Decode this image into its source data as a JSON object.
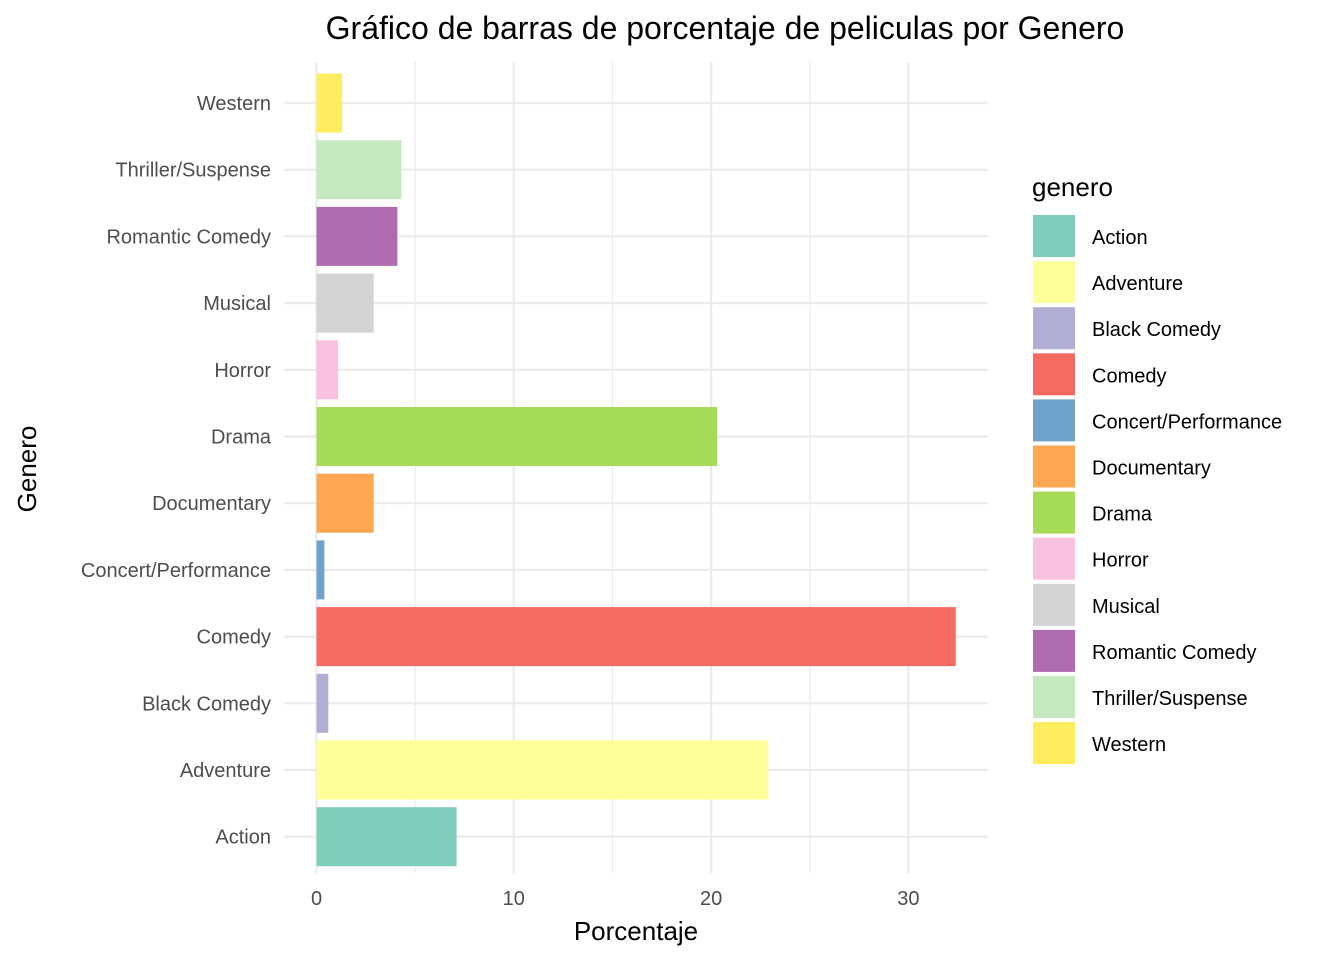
{
  "chart_data": {
    "type": "bar",
    "orientation": "horizontal",
    "title": "Gráfico de barras de porcentaje de peliculas por Genero",
    "xlabel": "Porcentaje",
    "ylabel": "Genero",
    "xlim": [
      0,
      34
    ],
    "x_ticks": [
      0,
      10,
      20,
      30
    ],
    "grid": true,
    "legend_title": "genero",
    "legend_position": "right",
    "categories": [
      "Action",
      "Adventure",
      "Black Comedy",
      "Comedy",
      "Concert/Performance",
      "Documentary",
      "Drama",
      "Horror",
      "Musical",
      "Romantic Comedy",
      "Thriller/Suspense",
      "Western"
    ],
    "values": [
      7.1,
      22.9,
      0.6,
      32.4,
      0.4,
      2.9,
      20.3,
      1.1,
      2.9,
      4.1,
      4.3,
      1.3
    ],
    "colors": [
      "#7FCDBB",
      "#FFFF99",
      "#B0AED5",
      "#F76A61",
      "#6FA3CC",
      "#FDA752",
      "#A6DB58",
      "#F9C1E0",
      "#D3D3D3",
      "#AF6BB0",
      "#C5E9BE",
      "#FFED5F"
    ]
  }
}
